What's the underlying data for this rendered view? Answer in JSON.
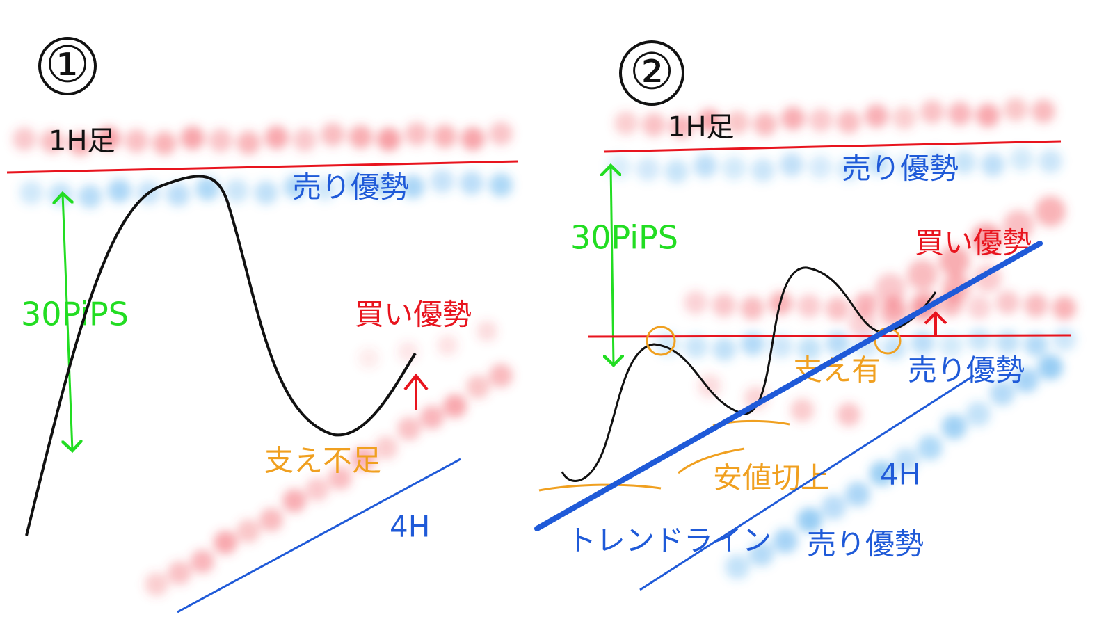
{
  "panels": [
    {
      "number": "①",
      "hour_label": "1H足",
      "sell_label": "売り優勢",
      "range_label": "30PiPS",
      "buy_label": "買い優勢",
      "support_label": "支え不足",
      "four_hour_label": "4H"
    },
    {
      "number": "②",
      "hour_label": "1H足",
      "sell_label": "売り優勢",
      "range_label": "30PiPS",
      "buy_label": "買い優勢",
      "support_label": "支え有",
      "higher_low_label": "安値切上",
      "trendline_label": "トレンドライン",
      "four_hour_label": "4H",
      "lower_sell_label": "売り優勢"
    }
  ]
}
